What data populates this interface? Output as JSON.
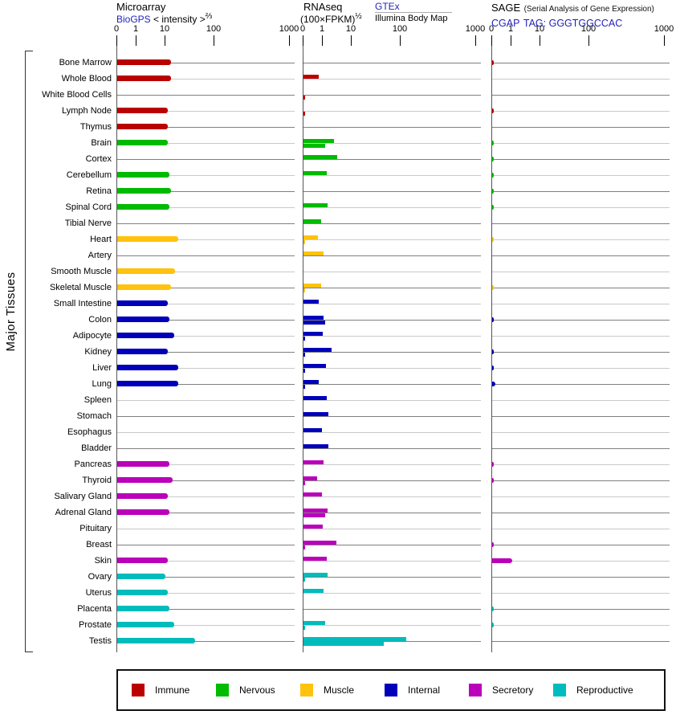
{
  "side": {
    "label": "Major Tissues"
  },
  "headers": {
    "microarray": {
      "title": "Microarray",
      "link": "BioGPS",
      "subtitle": "< intensity >",
      "subtitle_sup": "⅔"
    },
    "rnaseq": {
      "title": "RNAseq",
      "formula": "(100×FPKM)",
      "formula_sup": "½",
      "link": "GTEx",
      "source2": "Illumina Body Map"
    },
    "sage": {
      "title": "SAGE",
      "note": "(Serial Analysis of Gene Expression)",
      "link": "CGAP",
      "tag": "TAG: GGGTGGCCAC"
    }
  },
  "axis": {
    "tick_labels": [
      "0",
      "1",
      "10",
      "100",
      "1000"
    ]
  },
  "legend": {
    "items": [
      {
        "label": "Immune",
        "color": "#bb0000"
      },
      {
        "label": "Nervous",
        "color": "#00bb00"
      },
      {
        "label": "Muscle",
        "color": "#ffc20e"
      },
      {
        "label": "Internal",
        "color": "#0000bb"
      },
      {
        "label": "Secretory",
        "color": "#bb00bb"
      },
      {
        "label": "Reproductive",
        "color": "#00bcbc"
      }
    ]
  },
  "chart_data": {
    "type": "bar",
    "orientation": "horizontal",
    "x_axis": {
      "ticks": [
        0,
        1,
        10,
        100,
        1000
      ],
      "scale": "compressed log-like axis labelled 0,1,10,100,1000"
    },
    "panels": [
      {
        "id": "microarray",
        "title": "Microarray",
        "source_link": "BioGPS",
        "unit": "< intensity >^(2/3)",
        "series": [
          "microarray"
        ]
      },
      {
        "id": "rnaseq",
        "title": "RNAseq",
        "unit": "(100×FPKM)^(1/2)",
        "series": [
          "gtex",
          "illumina"
        ],
        "series_labels": [
          "GTEx",
          "Illumina Body Map"
        ]
      },
      {
        "id": "sage",
        "title": "SAGE (Serial Analysis of Gene Expression)",
        "source_link": "CGAP",
        "tag": "GGGTGGCCAC",
        "series": [
          "sage"
        ]
      }
    ],
    "group_colors": {
      "Immune": "#bb0000",
      "Nervous": "#00bb00",
      "Muscle": "#ffc20e",
      "Internal": "#0000bb",
      "Secretory": "#bb00bb",
      "Reproductive": "#00bcbc"
    },
    "tissues": [
      {
        "name": "Bone Marrow",
        "group": "Immune",
        "microarray": 13,
        "gtex": 0,
        "illumina": 0,
        "sage": 0.1
      },
      {
        "name": "Whole Blood",
        "group": "Immune",
        "microarray": 13,
        "gtex": 0.8,
        "illumina": 0,
        "sage": 0
      },
      {
        "name": "White Blood Cells",
        "group": "Immune",
        "microarray": 0,
        "gtex": 0,
        "illumina": 0.1,
        "sage": 0
      },
      {
        "name": "Lymph Node",
        "group": "Immune",
        "microarray": 11,
        "gtex": 0,
        "illumina": 0.1,
        "sage": 0.1
      },
      {
        "name": "Thymus",
        "group": "Immune",
        "microarray": 11,
        "gtex": 0,
        "illumina": 0,
        "sage": 0
      },
      {
        "name": "Brain",
        "group": "Nervous",
        "microarray": 11,
        "gtex": 2.4,
        "illumina": 1.2,
        "sage": 0.1
      },
      {
        "name": "Cortex",
        "group": "Nervous",
        "microarray": 0,
        "gtex": 3.1,
        "illumina": 0,
        "sage": 0.1
      },
      {
        "name": "Cerebellum",
        "group": "Nervous",
        "microarray": 12,
        "gtex": 1.4,
        "illumina": 0,
        "sage": 0.1
      },
      {
        "name": "Retina",
        "group": "Nervous",
        "microarray": 13,
        "gtex": 0,
        "illumina": 0,
        "sage": 0.1
      },
      {
        "name": "Spinal Cord",
        "group": "Nervous",
        "microarray": 12,
        "gtex": 1.5,
        "illumina": 0,
        "sage": 0.1
      },
      {
        "name": "Tibial Nerve",
        "group": "Nervous",
        "microarray": 0,
        "gtex": 0.9,
        "illumina": 0,
        "sage": 0
      },
      {
        "name": "Heart",
        "group": "Muscle",
        "microarray": 18,
        "gtex": 0.75,
        "illumina": 0.1,
        "sage": 0.1
      },
      {
        "name": "Artery",
        "group": "Muscle",
        "microarray": 0,
        "gtex": 1.1,
        "illumina": 0,
        "sage": 0
      },
      {
        "name": "Smooth Muscle",
        "group": "Muscle",
        "microarray": 16,
        "gtex": 0,
        "illumina": 0,
        "sage": 0
      },
      {
        "name": "Skeletal Muscle",
        "group": "Muscle",
        "microarray": 13,
        "gtex": 0.9,
        "illumina": 0.1,
        "sage": 0.1
      },
      {
        "name": "Small Intestine",
        "group": "Internal",
        "microarray": 11,
        "gtex": 0.8,
        "illumina": 0,
        "sage": 0
      },
      {
        "name": "Colon",
        "group": "Internal",
        "microarray": 12,
        "gtex": 1.05,
        "illumina": 1.2,
        "sage": 0.1
      },
      {
        "name": "Adipocyte",
        "group": "Internal",
        "microarray": 15,
        "gtex": 1.0,
        "illumina": 0.1,
        "sage": 0
      },
      {
        "name": "Kidney",
        "group": "Internal",
        "microarray": 11,
        "gtex": 2.0,
        "illumina": 0.1,
        "sage": 0.1
      },
      {
        "name": "Liver",
        "group": "Internal",
        "microarray": 18,
        "gtex": 1.3,
        "illumina": 0.1,
        "sage": 0.1
      },
      {
        "name": "Lung",
        "group": "Internal",
        "microarray": 18,
        "gtex": 0.8,
        "illumina": 0.1,
        "sage": 0.17
      },
      {
        "name": "Spleen",
        "group": "Internal",
        "microarray": 0,
        "gtex": 1.4,
        "illumina": 0,
        "sage": 0
      },
      {
        "name": "Stomach",
        "group": "Internal",
        "microarray": 0,
        "gtex": 1.6,
        "illumina": 0,
        "sage": 0
      },
      {
        "name": "Esophagus",
        "group": "Internal",
        "microarray": 0,
        "gtex": 0.95,
        "illumina": 0,
        "sage": 0
      },
      {
        "name": "Bladder",
        "group": "Internal",
        "microarray": 0,
        "gtex": 1.6,
        "illumina": 0,
        "sage": 0
      },
      {
        "name": "Pancreas",
        "group": "Secretory",
        "microarray": 12,
        "gtex": 1.05,
        "illumina": 0,
        "sage": 0.1
      },
      {
        "name": "Thyroid",
        "group": "Secretory",
        "microarray": 14,
        "gtex": 0.7,
        "illumina": 0.1,
        "sage": 0.1
      },
      {
        "name": "Salivary Gland",
        "group": "Secretory",
        "microarray": 11,
        "gtex": 0.95,
        "illumina": 0,
        "sage": 0
      },
      {
        "name": "Adrenal Gland",
        "group": "Secretory",
        "microarray": 12,
        "gtex": 1.45,
        "illumina": 1.2,
        "sage": 0
      },
      {
        "name": "Pituitary",
        "group": "Secretory",
        "microarray": 0,
        "gtex": 1.0,
        "illumina": 0,
        "sage": 0
      },
      {
        "name": "Breast",
        "group": "Secretory",
        "microarray": 0,
        "gtex": 2.9,
        "illumina": 0.1,
        "sage": 0.1
      },
      {
        "name": "Skin",
        "group": "Secretory",
        "microarray": 11,
        "gtex": 1.4,
        "illumina": 0,
        "sage": 1.1
      },
      {
        "name": "Ovary",
        "group": "Reproductive",
        "microarray": 10,
        "gtex": 1.5,
        "illumina": 0.1,
        "sage": 0
      },
      {
        "name": "Uterus",
        "group": "Reproductive",
        "microarray": 11,
        "gtex": 1.1,
        "illumina": 0,
        "sage": 0
      },
      {
        "name": "Placenta",
        "group": "Reproductive",
        "microarray": 12,
        "gtex": 0,
        "illumina": 0,
        "sage": 0.1
      },
      {
        "name": "Prostate",
        "group": "Reproductive",
        "microarray": 15,
        "gtex": 1.2,
        "illumina": 0.1,
        "sage": 0.1
      },
      {
        "name": "Testis",
        "group": "Reproductive",
        "microarray": 40,
        "gtex": 120,
        "illumina": 45,
        "sage": 0
      }
    ]
  }
}
